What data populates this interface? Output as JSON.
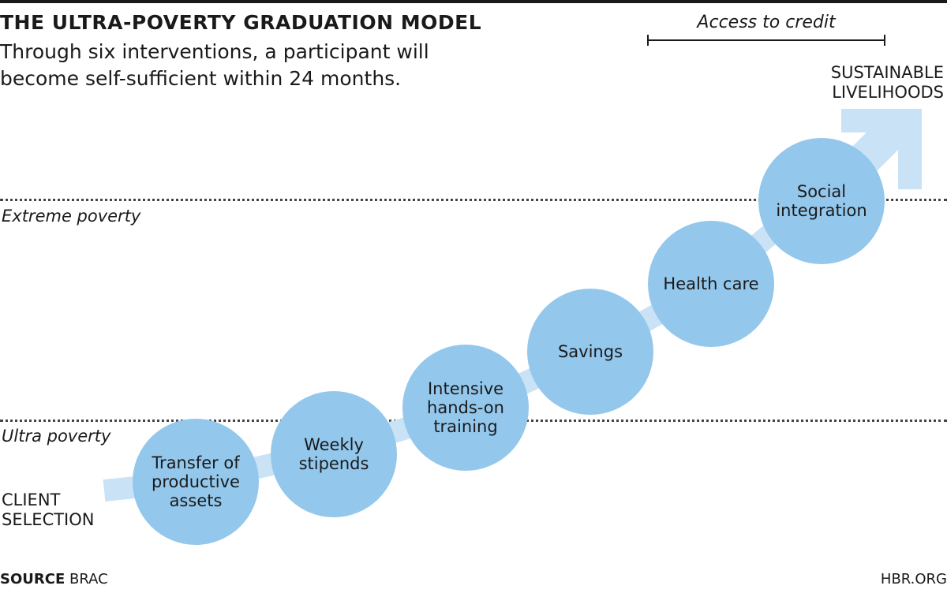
{
  "header": {
    "title": "THE ULTRA-POVERTY GRADUATION MODEL",
    "subtitle": "Through six interventions, a participant will become self-sufficient within 24 months."
  },
  "credit": {
    "label": "Access to credit"
  },
  "levels": {
    "extreme": "Extreme poverty",
    "ultra": "Ultra poverty"
  },
  "endpoints": {
    "start_line1": "CLIENT",
    "start_line2": "SELECTION",
    "end_line1": "SUSTAINABLE",
    "end_line2": "LIVELIHOODS"
  },
  "steps": [
    {
      "label": "Transfer of productive assets"
    },
    {
      "label": "Weekly stipends"
    },
    {
      "label": "Intensive hands-on training"
    },
    {
      "label": "Savings"
    },
    {
      "label": "Health care"
    },
    {
      "label": "Social integration"
    }
  ],
  "footer": {
    "source_key": "SOURCE",
    "source_value": "BRAC",
    "brand": "HBR.ORG"
  },
  "colors": {
    "circle": "#93c7ec",
    "arrow": "#c9e2f6",
    "text": "#1a1a1a"
  }
}
